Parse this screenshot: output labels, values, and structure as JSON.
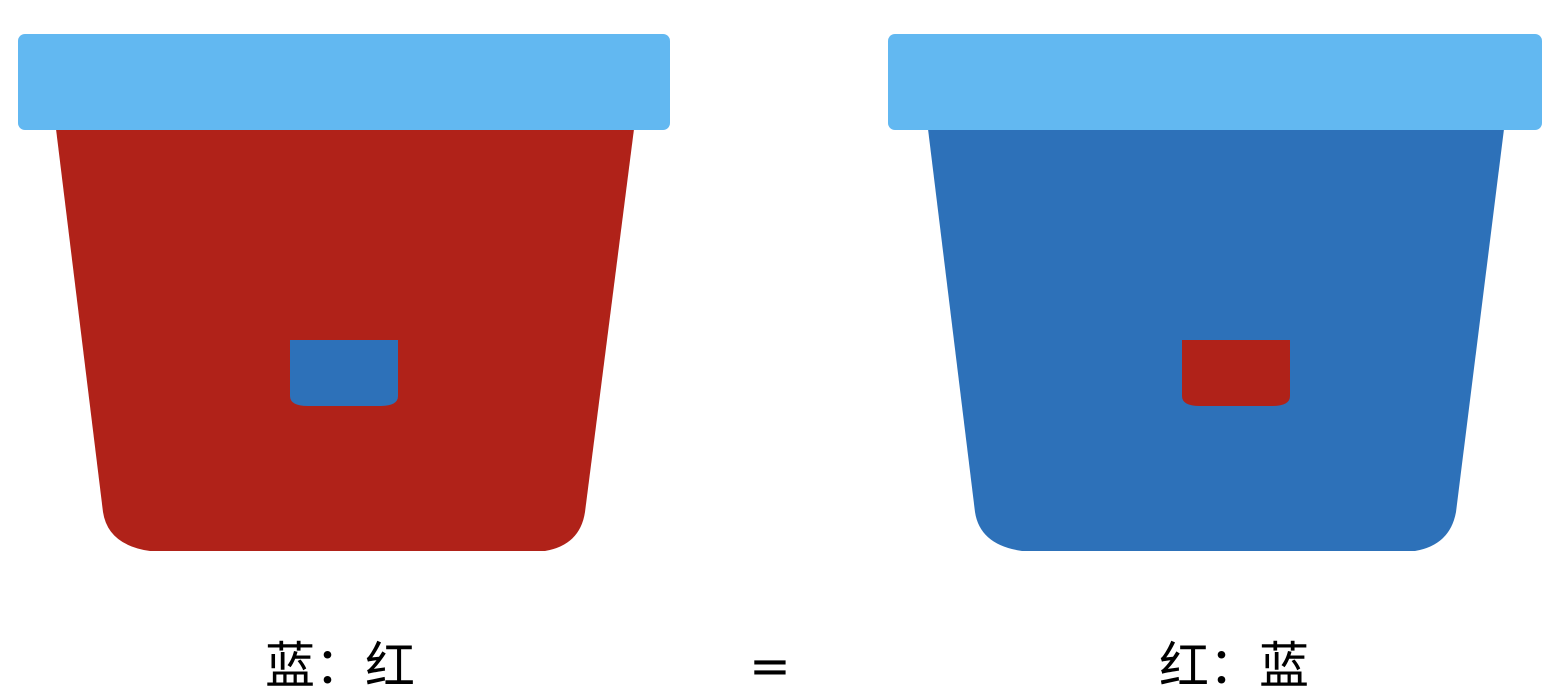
{
  "colors": {
    "lid": "#62b8f1",
    "red": "#b02219",
    "blue": "#2d71b9",
    "text": "#000000"
  },
  "cups": [
    {
      "id": "left",
      "body_color": "red",
      "tab_color": "blue"
    },
    {
      "id": "right",
      "body_color": "blue",
      "tab_color": "red"
    }
  ],
  "captions": {
    "left": "蓝：红",
    "equals": "=",
    "right": "红：蓝"
  }
}
